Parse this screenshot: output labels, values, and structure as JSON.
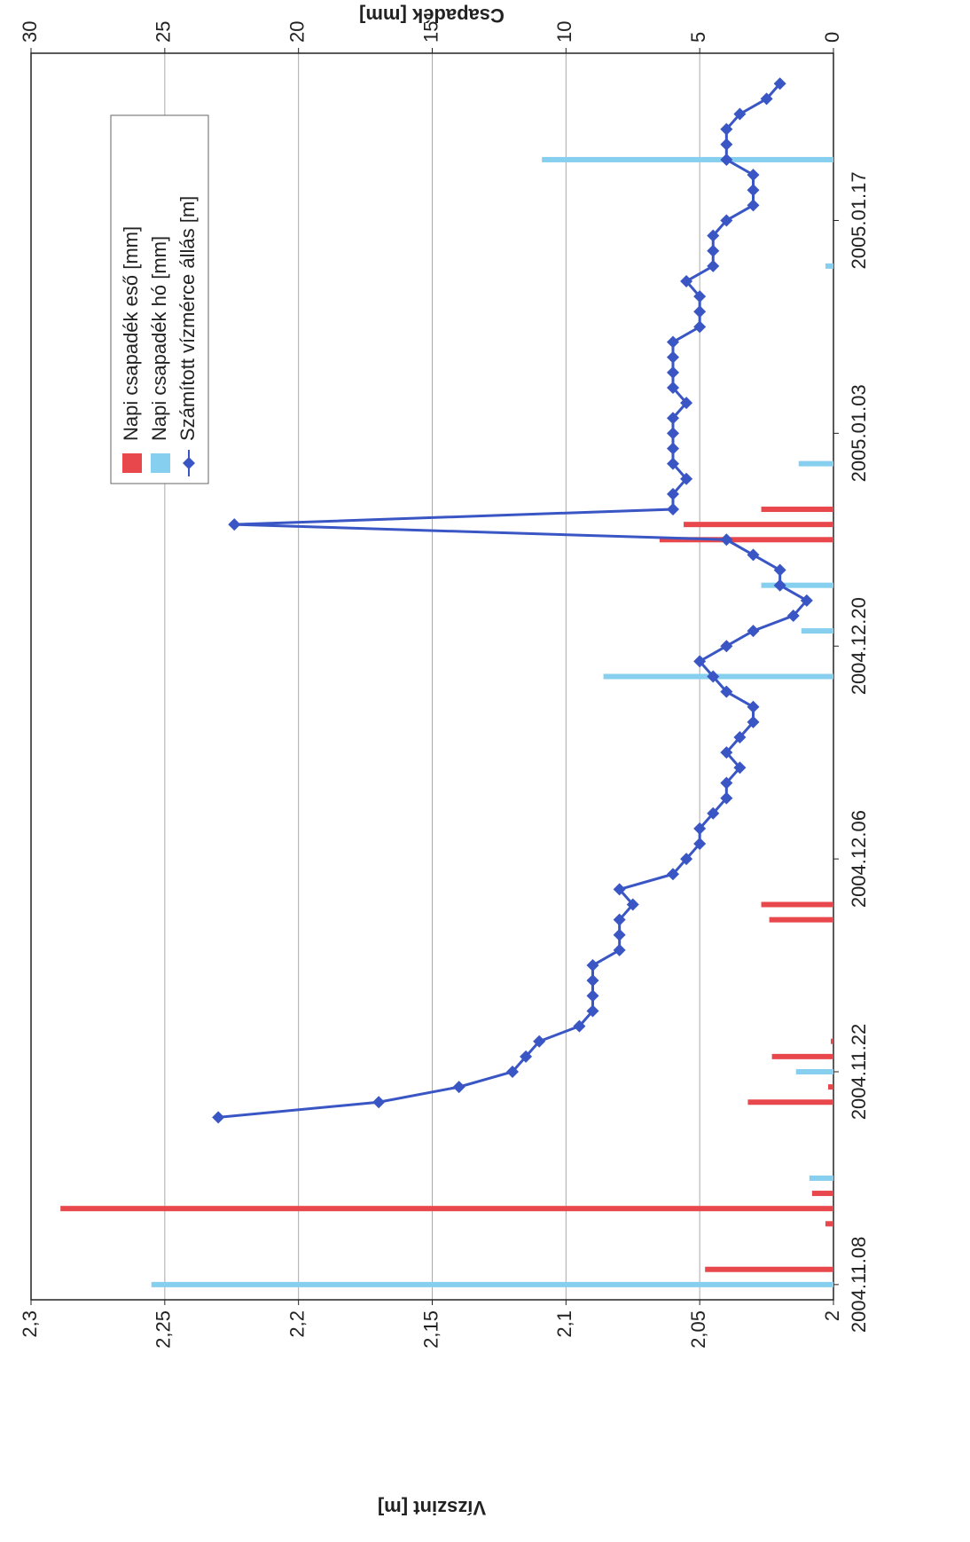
{
  "chart_data": {
    "type": "bar-line",
    "y_label": "Vízszint [m]",
    "y2_label": "Csapadék [mm]",
    "xlim": [
      "2004.11.07",
      "2005.01.28"
    ],
    "xticks": [
      "2004.11.08",
      "2004.11.22",
      "2004.12.06",
      "2004.12.20",
      "2005.01.03",
      "2005.01.17"
    ],
    "ylim": [
      2,
      2.3
    ],
    "yticks": [
      {
        "value": 2,
        "label": "2"
      },
      {
        "value": 2.05,
        "label": "2,05"
      },
      {
        "value": 2.1,
        "label": "2,1"
      },
      {
        "value": 2.15,
        "label": "2,15"
      },
      {
        "value": 2.2,
        "label": "2,2"
      },
      {
        "value": 2.25,
        "label": "2,25"
      },
      {
        "value": 2.3,
        "label": "2,3"
      }
    ],
    "y2lim": [
      0,
      30
    ],
    "y2ticks": [
      0,
      5,
      10,
      15,
      20,
      25,
      30
    ],
    "grid": true,
    "legend": "upper right",
    "series": [
      {
        "name": "Napi csapadék eső [mm]",
        "type": "bar",
        "axis": "y2",
        "color": "#e8474c",
        "x": [
          "2004.11.09",
          "2004.11.12",
          "2004.11.13",
          "2004.11.14",
          "2004.11.20",
          "2004.11.21",
          "2004.11.23",
          "2004.11.24",
          "2004.12.02",
          "2004.12.03",
          "2004.12.27",
          "2004.12.28",
          "2004.12.29"
        ],
        "values": [
          4.8,
          0.3,
          28.9,
          0.8,
          3.2,
          0.2,
          2.3,
          0.1,
          2.4,
          2.7,
          6.5,
          5.6,
          2.7
        ]
      },
      {
        "name": "Napi csapadék hó [mm]",
        "type": "bar",
        "axis": "y2",
        "color": "#86cfee",
        "x": [
          "2004.11.08",
          "2004.11.15",
          "2004.11.22",
          "2004.12.18",
          "2004.12.21",
          "2004.12.24",
          "2005.01.01",
          "2005.01.14",
          "2005.01.21"
        ],
        "values": [
          25.5,
          0.9,
          1.4,
          8.6,
          1.2,
          2.7,
          1.3,
          0.3,
          10.9
        ]
      },
      {
        "name": "Számított vízmérce állás [m]",
        "type": "line",
        "axis": "y",
        "color": "#3a56c5",
        "x": [
          "2004.11.19",
          "2004.11.20",
          "2004.11.21",
          "2004.11.22",
          "2004.11.23",
          "2004.11.24",
          "2004.11.25",
          "2004.11.26",
          "2004.11.27",
          "2004.11.28",
          "2004.11.29",
          "2004.11.30",
          "2004.12.01",
          "2004.12.02",
          "2004.12.03",
          "2004.12.04",
          "2004.12.05",
          "2004.12.06",
          "2004.12.07",
          "2004.12.08",
          "2004.12.09",
          "2004.12.10",
          "2004.12.11",
          "2004.12.12",
          "2004.12.13",
          "2004.12.14",
          "2004.12.15",
          "2004.12.16",
          "2004.12.17",
          "2004.12.18",
          "2004.12.19",
          "2004.12.20",
          "2004.12.21",
          "2004.12.22",
          "2004.12.23",
          "2004.12.24",
          "2004.12.25",
          "2004.12.26",
          "2004.12.27",
          "2004.12.28",
          "2004.12.29",
          "2004.12.30",
          "2004.12.31",
          "2005.01.01",
          "2005.01.02",
          "2005.01.03",
          "2005.01.04",
          "2005.01.05",
          "2005.01.06",
          "2005.01.07",
          "2005.01.08",
          "2005.01.09",
          "2005.01.10",
          "2005.01.11",
          "2005.01.12",
          "2005.01.13",
          "2005.01.14",
          "2005.01.15",
          "2005.01.16",
          "2005.01.17",
          "2005.01.18",
          "2005.01.19",
          "2005.01.20",
          "2005.01.21",
          "2005.01.22",
          "2005.01.23",
          "2005.01.24",
          "2005.01.25",
          "2005.01.26"
        ],
        "values": [
          2.23,
          2.17,
          2.14,
          2.12,
          2.115,
          2.11,
          2.095,
          2.09,
          2.09,
          2.09,
          2.09,
          2.08,
          2.08,
          2.08,
          2.075,
          2.08,
          2.06,
          2.055,
          2.05,
          2.05,
          2.045,
          2.04,
          2.04,
          2.035,
          2.04,
          2.035,
          2.03,
          2.03,
          2.04,
          2.045,
          2.05,
          2.04,
          2.03,
          2.015,
          2.01,
          2.02,
          2.02,
          2.03,
          2.04,
          2.224,
          2.06,
          2.06,
          2.055,
          2.06,
          2.06,
          2.06,
          2.06,
          2.055,
          2.06,
          2.06,
          2.06,
          2.06,
          2.05,
          2.05,
          2.05,
          2.055,
          2.045,
          2.045,
          2.045,
          2.04,
          2.03,
          2.03,
          2.03,
          2.04,
          2.04,
          2.04,
          2.035,
          2.025,
          2.02
        ]
      }
    ]
  }
}
